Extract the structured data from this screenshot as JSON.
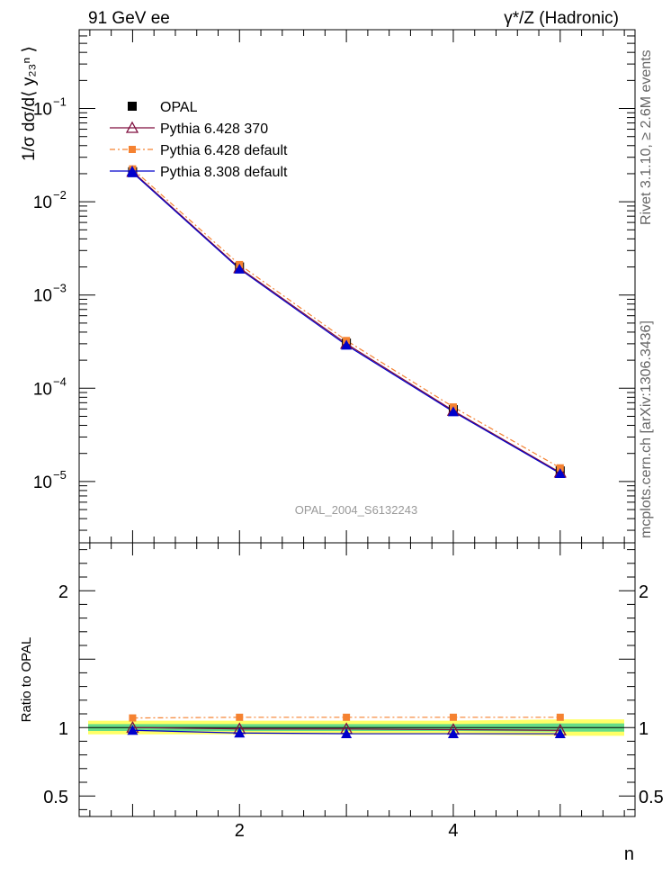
{
  "header": {
    "left": "91 GeV ee",
    "right": "γ*/Z (Hadronic)"
  },
  "side_text": {
    "upper": "Rivet 3.1.10, ≥ 2.6M events",
    "lower": "mcplots.cern.ch [arXiv:1306.3436]"
  },
  "watermark": "OPAL_2004_S6132243",
  "colors": {
    "opal": "#000000",
    "py6_370": "#7f0f3f",
    "py6_def": "#f58231",
    "py8_def": "#0000cc",
    "band_yellow": "#ffff66",
    "band_green": "#66dd88"
  },
  "chart_data": [
    {
      "type": "scatter",
      "panel": "main",
      "ylabel": "1/σ dσ/d⟨ y₂₃ⁿ ⟩",
      "xlim": [
        0.5,
        5.7
      ],
      "ylim": [
        2.2e-06,
        0.7
      ],
      "yscale": "log",
      "y_ticks": [
        {
          "value": 1e-05,
          "label": "10",
          "exp": "−5"
        },
        {
          "value": 0.0001,
          "label": "10",
          "exp": "−4"
        },
        {
          "value": 0.001,
          "label": "10",
          "exp": "−3"
        },
        {
          "value": 0.01,
          "label": "10",
          "exp": "−2"
        },
        {
          "value": 0.1,
          "label": "10",
          "exp": "−1"
        }
      ],
      "legend_position": "top-left",
      "x": [
        1,
        2,
        3,
        4,
        5
      ],
      "series": [
        {
          "name": "OPAL",
          "key": "opal",
          "marker": "square",
          "values": [
            0.021,
            0.002,
            0.000305,
            5.9e-05,
            1.3e-05
          ]
        },
        {
          "name": "Pythia 6.428 370",
          "key": "py6_370",
          "marker": "open-triangle",
          "values": [
            0.021,
            0.00195,
            0.0003,
            5.75e-05,
            1.25e-05
          ]
        },
        {
          "name": "Pythia 6.428 default",
          "key": "py6_def",
          "marker": "square-small",
          "values": [
            0.0225,
            0.00212,
            0.000325,
            6.3e-05,
            1.4e-05
          ]
        },
        {
          "name": "Pythia 8.308 default",
          "key": "py8_def",
          "marker": "filled-triangle",
          "values": [
            0.0205,
            0.0019,
            0.00029,
            5.6e-05,
            1.22e-05
          ]
        }
      ]
    },
    {
      "type": "line",
      "panel": "ratio",
      "ylabel": "Ratio to OPAL",
      "xlabel": "n",
      "xlim": [
        0.5,
        5.7
      ],
      "ylim": [
        0.35,
        2.35
      ],
      "x_ticks": [
        {
          "value": 2,
          "label": "2"
        },
        {
          "value": 4,
          "label": "4"
        }
      ],
      "y_ticks": [
        {
          "value": 0.5,
          "label": "0.5"
        },
        {
          "value": 1,
          "label": "1"
        },
        {
          "value": 2,
          "label": "2"
        }
      ],
      "x": [
        1,
        2,
        3,
        4,
        5
      ],
      "band_yellow": {
        "lo": [
          0.95,
          0.95,
          0.95,
          0.95,
          0.94
        ],
        "hi": [
          1.05,
          1.05,
          1.05,
          1.05,
          1.06
        ]
      },
      "band_green": {
        "lo": [
          0.975,
          0.975,
          0.975,
          0.975,
          0.97
        ],
        "hi": [
          1.025,
          1.025,
          1.025,
          1.025,
          1.03
        ]
      },
      "series": [
        {
          "name": "Pythia 6.428 370",
          "key": "py6_370",
          "values": [
            1.0,
            0.99,
            0.99,
            0.985,
            0.98
          ]
        },
        {
          "name": "Pythia 6.428 default",
          "key": "py6_def",
          "values": [
            1.07,
            1.075,
            1.075,
            1.075,
            1.075
          ]
        },
        {
          "name": "Pythia 8.308 default",
          "key": "py8_def",
          "values": [
            0.98,
            0.96,
            0.955,
            0.955,
            0.955
          ]
        }
      ]
    }
  ]
}
